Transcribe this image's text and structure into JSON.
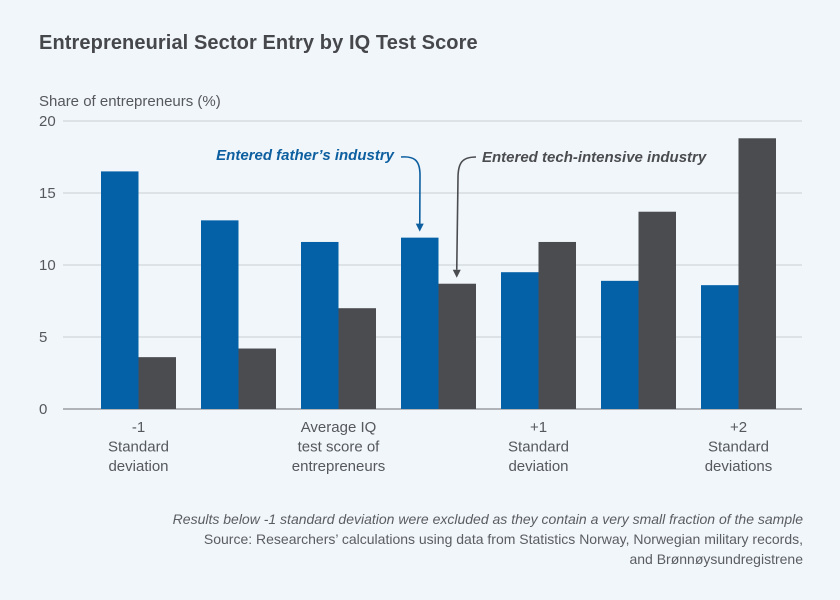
{
  "chart_data": {
    "type": "bar",
    "title": "Entrepreneurial Sector Entry by IQ Test Score",
    "ylabel": "Share of entrepreneurs (%)",
    "xlabel": "",
    "ylim": [
      0,
      20
    ],
    "yticks": [
      0,
      5,
      10,
      15,
      20
    ],
    "grid": true,
    "categories": [
      "-1 SD",
      "",
      "Average",
      "",
      "+1 SD",
      "",
      "+2 SD"
    ],
    "category_labels": [
      [
        "-1",
        "Standard",
        "deviation"
      ],
      [],
      [
        "Average IQ",
        "test score of",
        "entrepreneurs"
      ],
      [],
      [
        "+1",
        "Standard",
        "deviation"
      ],
      [],
      [
        "+2",
        "Standard",
        "deviations"
      ]
    ],
    "series": [
      {
        "name": "Entered father's industry",
        "color": "#0461a8",
        "values": [
          16.5,
          13.1,
          11.6,
          11.9,
          9.5,
          8.9,
          8.6
        ]
      },
      {
        "name": "Entered tech-intensive industry",
        "color": "#4b4c4f",
        "values": [
          3.6,
          4.2,
          7.0,
          8.7,
          11.6,
          13.7,
          18.8
        ]
      }
    ],
    "annotations": [
      {
        "text": "Entered father’s industry",
        "series": 0,
        "category_index": 3,
        "color": "#0d5fa0"
      },
      {
        "text": "Entered tech-intensive industry",
        "series": 1,
        "category_index": 3,
        "color": "#4b4c4f"
      }
    ]
  },
  "notes": {
    "exclusion": "Results below -1 standard deviation were excluded as they contain a very small fraction of the sample",
    "source_line1": "Source: Researchers’ calculations using data from Statistics Norway, Norwegian military records,",
    "source_line2": "and Brønnøysundregistrene"
  }
}
